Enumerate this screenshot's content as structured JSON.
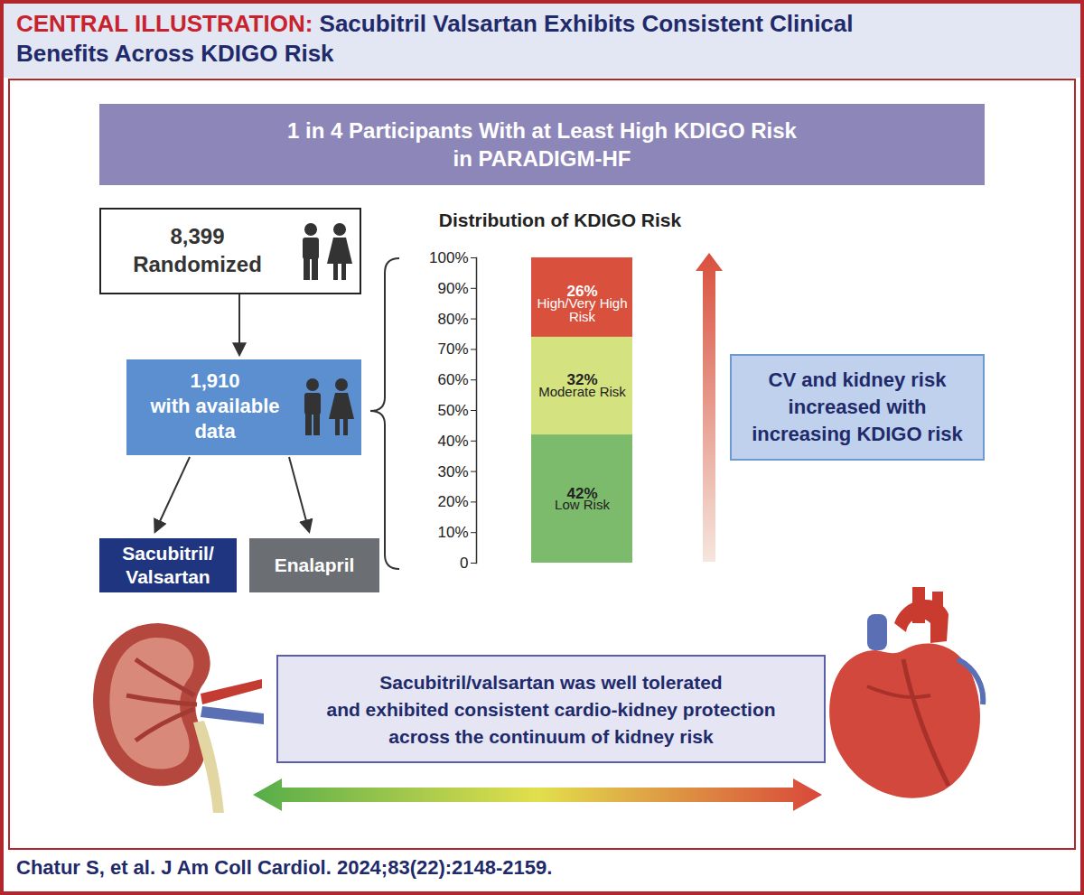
{
  "header": {
    "label": "CENTRAL ILLUSTRATION:",
    "title": [
      "Sacubitril Valsartan Exhibits Consistent Clinical",
      "Benefits Across KDIGO Risk"
    ]
  },
  "banner": [
    "1 in 4 Participants With at Least High KDIGO Risk",
    "in PARADIGM-HF"
  ],
  "nodes": [
    {
      "number": "8,399",
      "label": [
        "Randomized"
      ]
    },
    {
      "number": "1,910",
      "label": [
        "with available",
        "data"
      ]
    },
    {
      "label": [
        "Sacubitril/",
        "Valsartan"
      ]
    },
    {
      "label": [
        "Enalapril"
      ]
    }
  ],
  "callouts": [
    [
      "CV and kidney risk",
      "increased with",
      "increasing KDIGO risk"
    ],
    [
      "Sacubitril/valsartan was well tolerated",
      "and exhibited consistent cardio-kidney protection",
      "across the continuum of kidney risk"
    ]
  ],
  "citation": "Chatur S, et al. J Am Coll Cardiol. 2024;83(22):2148-2159.",
  "chart_data": {
    "type": "bar",
    "title": "Distribution of KDIGO Risk",
    "categories": [
      null
    ],
    "series": [
      {
        "name": "Low Risk",
        "color": "#7dbb6c",
        "values": [
          42
        ],
        "value_labels": [
          "42%"
        ]
      },
      {
        "name": "Moderate Risk",
        "color": "#d4e27f",
        "values": [
          32
        ],
        "value_labels": [
          "32%"
        ]
      },
      {
        "name": "High/Very High Risk",
        "color": "#d9503d",
        "values": [
          26
        ],
        "value_labels": [
          "26%"
        ]
      }
    ],
    "ylim": [
      0,
      100
    ],
    "yticks": [
      0,
      {
        "value": 10,
        "label": "10%"
      },
      {
        "value": 20,
        "label": "20%"
      },
      {
        "value": 30,
        "label": "30%"
      },
      {
        "value": 40,
        "label": "40%"
      },
      {
        "value": 50,
        "label": "50%"
      },
      {
        "value": 60,
        "label": "60%"
      },
      {
        "value": 70,
        "label": "70%"
      },
      {
        "value": 80,
        "label": "80%"
      },
      {
        "value": 90,
        "label": "90%"
      },
      {
        "value": 100,
        "label": "100%"
      }
    ],
    "stacked": true,
    "data_labels": true,
    "grid": false,
    "tick_labels": "y"
  }
}
